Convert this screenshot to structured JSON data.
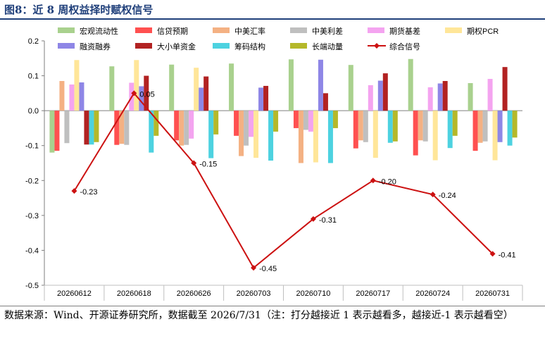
{
  "title": "图8：近 8 周权益择时赋权信号",
  "source": "数据来源：Wind、开源证券研究所，数据截至 2026/7/31（注：打分越接近 1 表示越看多，越接近-1 表示越看空）",
  "chart_data": {
    "type": "bar",
    "categories": [
      "20260612",
      "20260618",
      "20260626",
      "20260703",
      "20260710",
      "20260717",
      "20260724",
      "20260731"
    ],
    "ylim": [
      -0.5,
      0.2
    ],
    "yticks": [
      "0.2",
      "0.1",
      "0.0",
      "-0.1",
      "-0.2",
      "-0.3",
      "-0.4",
      "-0.5"
    ],
    "grid": false,
    "legend_position": "top",
    "series": [
      {
        "name": "宏观流动性",
        "color": "#a9d18e",
        "values": [
          -0.12,
          0.127,
          0.132,
          0.135,
          0.147,
          0.131,
          0.148,
          0.079
        ]
      },
      {
        "name": "信贷预期",
        "color": "#ff5050",
        "values": [
          -0.115,
          -0.098,
          -0.085,
          -0.072,
          -0.05,
          -0.108,
          -0.128,
          -0.115
        ]
      },
      {
        "name": "中美汇率",
        "color": "#f4b183",
        "values": [
          0.085,
          -0.095,
          -0.1,
          -0.13,
          -0.15,
          -0.085,
          -0.085,
          -0.092
        ]
      },
      {
        "name": "中美利差",
        "color": "#bfbfbf",
        "values": [
          -0.093,
          -0.098,
          -0.098,
          -0.1,
          -0.055,
          -0.09,
          -0.088,
          -0.088
        ]
      },
      {
        "name": "期货基差",
        "color": "#f4a4f0",
        "values": [
          0.075,
          0.08,
          -0.08,
          -0.075,
          -0.06,
          0.073,
          0.067,
          0.091
        ]
      },
      {
        "name": "期权PCR",
        "color": "#ffe699",
        "values": [
          0.145,
          0.145,
          0.123,
          -0.135,
          -0.148,
          -0.135,
          -0.142,
          -0.142
        ]
      },
      {
        "name": "融资融券",
        "color": "#8e86e6",
        "values": [
          0.081,
          0.07,
          0.066,
          0.066,
          0.146,
          0.086,
          0.078,
          -0.09
        ]
      },
      {
        "name": "大小单资金",
        "color": "#b22222",
        "values": [
          -0.097,
          0.1,
          0.098,
          0.071,
          0.05,
          0.107,
          0.085,
          0.125
        ]
      },
      {
        "name": "筹码结构",
        "color": "#4dd2e0",
        "values": [
          -0.097,
          -0.12,
          -0.136,
          -0.143,
          -0.15,
          -0.092,
          -0.107,
          -0.1
        ]
      },
      {
        "name": "长端动量",
        "color": "#b5b82a",
        "values": [
          -0.09,
          -0.072,
          -0.068,
          -0.06,
          -0.05,
          -0.088,
          -0.072,
          -0.077
        ]
      }
    ],
    "line": {
      "name": "综合信号",
      "color": "#cc1111",
      "values": [
        -0.23,
        0.05,
        -0.15,
        -0.45,
        -0.31,
        -0.2,
        -0.24,
        -0.41
      ],
      "labels": [
        "-0.23",
        "0.05",
        "-0.15",
        "-0.45",
        "-0.31",
        "-0.20",
        "-0.24",
        "-0.41"
      ]
    }
  }
}
